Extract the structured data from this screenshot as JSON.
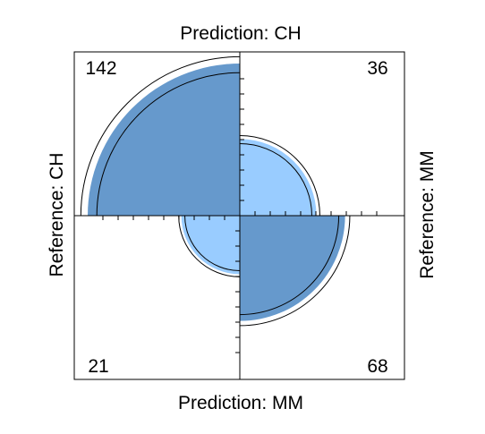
{
  "chart_data": {
    "type": "fourfold",
    "labels": {
      "top": "Prediction: CH",
      "bottom": "Prediction: MM",
      "left": "Reference: CH",
      "right": "Reference: MM"
    },
    "cells": [
      {
        "quadrant": "top-left",
        "reference": "CH",
        "prediction": "CH",
        "count": 142
      },
      {
        "quadrant": "top-right",
        "reference": "MM",
        "prediction": "CH",
        "count": 36
      },
      {
        "quadrant": "bottom-left",
        "reference": "CH",
        "prediction": "MM",
        "count": 21
      },
      {
        "quadrant": "bottom-right",
        "reference": "MM",
        "prediction": "MM",
        "count": 68
      }
    ],
    "colors": {
      "concordant": "#6699cc",
      "discordant": "#99ccff",
      "outline": "#000000"
    }
  }
}
